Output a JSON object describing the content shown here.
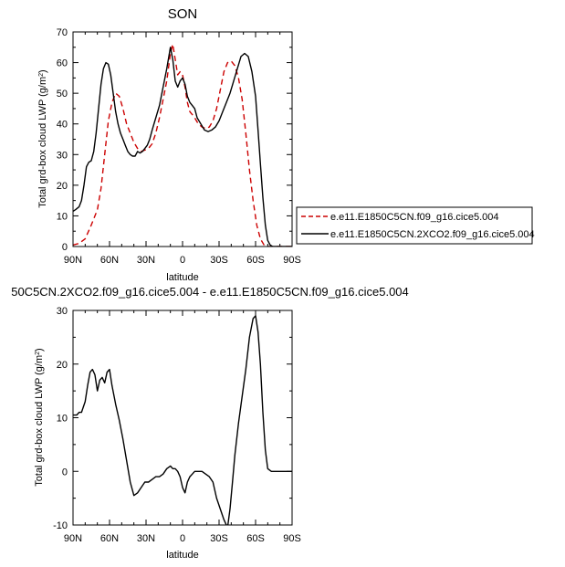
{
  "chart_data": [
    {
      "type": "line",
      "title": "SON",
      "xlabel": "latitude",
      "ylabel": "Total grd-box cloud LWP (g/m",
      "ylabel_sup": "2",
      "ylabel_close": ")",
      "xlim": [
        90,
        -90
      ],
      "ylim": [
        0,
        70
      ],
      "x_ticks": [
        90,
        60,
        30,
        0,
        -30,
        -60,
        -90
      ],
      "x_tick_labels": [
        "90N",
        "60N",
        "30N",
        "0",
        "30S",
        "60S",
        "90S"
      ],
      "y_ticks": [
        0,
        10,
        20,
        30,
        40,
        50,
        60,
        70
      ],
      "y_tick_labels": [
        "0",
        "10",
        "20",
        "30",
        "40",
        "50",
        "60",
        "70"
      ],
      "legend": "right",
      "series": [
        {
          "name": "e.e11.E1850C5CN.f09_g16.cice5.004",
          "color": "#cc0000",
          "dash": "dashed",
          "x": [
            90,
            85,
            80,
            75,
            70,
            67,
            64,
            61,
            58,
            55,
            52,
            49,
            46,
            43,
            40,
            37,
            34,
            31,
            28,
            25,
            22,
            19,
            16,
            13,
            10,
            8,
            6,
            4,
            2,
            0,
            -2,
            -4,
            -6,
            -8,
            -10,
            -13,
            -16,
            -19,
            -22,
            -25,
            -28,
            -31,
            -34,
            -37,
            -40,
            -43,
            -46,
            -49,
            -52,
            -55,
            -58,
            -61,
            -64,
            -67,
            -70,
            -73,
            -76,
            -80,
            -85,
            -90
          ],
          "y": [
            0.5,
            1,
            2.5,
            7,
            12,
            19,
            30,
            41,
            47,
            50,
            49,
            45,
            40,
            37,
            34,
            32,
            31,
            31.5,
            32,
            33.5,
            37,
            42,
            48,
            54,
            63,
            66,
            61,
            56,
            57,
            56,
            52,
            47,
            44,
            43,
            42,
            40,
            39,
            38.5,
            39,
            41,
            45,
            51,
            57,
            60,
            60.5,
            59,
            55,
            48,
            37,
            25,
            15,
            7,
            2.5,
            0.5,
            0,
            0,
            0,
            0,
            0,
            0
          ]
        },
        {
          "name": "e.e11.E1850C5CN.2XCO2.f09_g16.cice5.004",
          "color": "#000000",
          "dash": "solid",
          "x": [
            90,
            88,
            85,
            83,
            81,
            79,
            77,
            75,
            73,
            71,
            69,
            67,
            65,
            63,
            61,
            59,
            57,
            55,
            53,
            51,
            49,
            47,
            45,
            43,
            41,
            39,
            37,
            35,
            33,
            31,
            29,
            27,
            25,
            22,
            19,
            16,
            13,
            10,
            8,
            6,
            4,
            2,
            0,
            -2,
            -4,
            -6,
            -8,
            -10,
            -12,
            -15,
            -18,
            -21,
            -24,
            -27,
            -30,
            -33,
            -36,
            -39,
            -42,
            -45,
            -48,
            -51,
            -54,
            -57,
            -60,
            -62,
            -64,
            -66,
            -68,
            -70,
            -72,
            -74,
            -77,
            -80,
            -85,
            -90
          ],
          "y": [
            11.5,
            12,
            13,
            15,
            20,
            26,
            27.5,
            28,
            31,
            37,
            45,
            53,
            58,
            60,
            59.5,
            56,
            50,
            44,
            40,
            37,
            35,
            33,
            31,
            30,
            29.5,
            29.5,
            31,
            30.5,
            31,
            32,
            33,
            35,
            38,
            42,
            46,
            52,
            58,
            65,
            61,
            54,
            52,
            54,
            55,
            53,
            49,
            47,
            46,
            45,
            42,
            40,
            38,
            37.5,
            38,
            39,
            41,
            44,
            47,
            50,
            54,
            58,
            62,
            63,
            62,
            57,
            49,
            38,
            27,
            16,
            7,
            2,
            0.5,
            0,
            0,
            0,
            0,
            0
          ]
        }
      ]
    },
    {
      "type": "line",
      "title": "50C5CN.2XCO2.f09_g16.cice5.004 - e.e11.E1850C5CN.f09_g16.cice5.004",
      "xlabel": "latitude",
      "ylabel": "Total grd-box cloud LWP (g/m",
      "ylabel_sup": "2",
      "ylabel_close": ")",
      "xlim": [
        90,
        -90
      ],
      "ylim": [
        -10,
        30
      ],
      "x_ticks": [
        90,
        60,
        30,
        0,
        -30,
        -60,
        -90
      ],
      "x_tick_labels": [
        "90N",
        "60N",
        "30N",
        "0",
        "30S",
        "60S",
        "90S"
      ],
      "y_ticks": [
        -10,
        0,
        10,
        20,
        30
      ],
      "y_tick_labels": [
        "-10",
        "0",
        "10",
        "20",
        "30"
      ],
      "series": [
        {
          "color": "#000000",
          "dash": "solid",
          "x": [
            90,
            87,
            85,
            83,
            80,
            78,
            76,
            74,
            72,
            70,
            68,
            66,
            64,
            62,
            60,
            58,
            55,
            52,
            49,
            46,
            43,
            40,
            37,
            34,
            31,
            28,
            25,
            22,
            19,
            16,
            13,
            10,
            8,
            6,
            4,
            2,
            0,
            -2,
            -4,
            -6,
            -8,
            -10,
            -13,
            -16,
            -19,
            -22,
            -25,
            -28,
            -31,
            -34,
            -37,
            -39,
            -41,
            -43,
            -46,
            -49,
            -52,
            -55,
            -58,
            -60,
            -62,
            -64,
            -66,
            -68,
            -70,
            -73,
            -76,
            -80,
            -85,
            -90
          ],
          "y": [
            10.5,
            10.5,
            11,
            11,
            13,
            16,
            18.5,
            19,
            18,
            15,
            17,
            17.5,
            16.5,
            18.5,
            19,
            16,
            12.5,
            9.5,
            6,
            2,
            -2,
            -4.5,
            -4,
            -3,
            -2,
            -2,
            -1.5,
            -1,
            -1,
            -0.5,
            0.5,
            1,
            0.5,
            0.5,
            0,
            -1,
            -3,
            -4,
            -2,
            -1,
            -0.5,
            0,
            0,
            0,
            -0.5,
            -1,
            -2,
            -5,
            -7,
            -9,
            -10.5,
            -7,
            -2,
            3,
            9,
            14,
            19,
            25,
            28.5,
            29,
            26,
            20,
            11,
            4,
            0.5,
            0,
            0,
            0,
            0,
            0
          ]
        }
      ]
    }
  ]
}
